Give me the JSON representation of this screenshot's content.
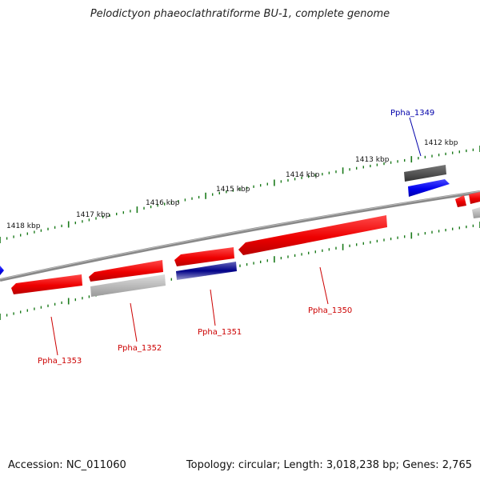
{
  "title": "Pelodictyon phaeoclathratiforme BU-1, complete genome",
  "footer": {
    "accession": "Accession: NC_011060",
    "topology": "Topology: circular; Length: 3,018,238 bp; Genes: 2,765"
  },
  "kbp_labels": [
    "1412 kbp",
    "1413 kbp",
    "1414 kbp",
    "1415 kbp",
    "1416 kbp",
    "1417 kbp",
    "1418 kbp"
  ],
  "genes": [
    {
      "label": "Ppha_1349",
      "color": "#0000aa",
      "kind": "blue"
    },
    {
      "label": "Ppha_1350",
      "color": "#cc0000",
      "kind": "red"
    },
    {
      "label": "Ppha_1351",
      "color": "#cc0000",
      "kind": "red"
    },
    {
      "label": "Ppha_1352",
      "color": "#cc0000",
      "kind": "red"
    },
    {
      "label": "Ppha_1353",
      "color": "#cc0000",
      "kind": "red"
    }
  ],
  "colors": {
    "tick": "#1a7a1a",
    "backbone": "#808080",
    "gene_red": "#ff0000",
    "gene_blue": "#0000ff",
    "gene_gray": "#999999",
    "gene_darkgray": "#555555",
    "gene_navy": "#000080"
  }
}
